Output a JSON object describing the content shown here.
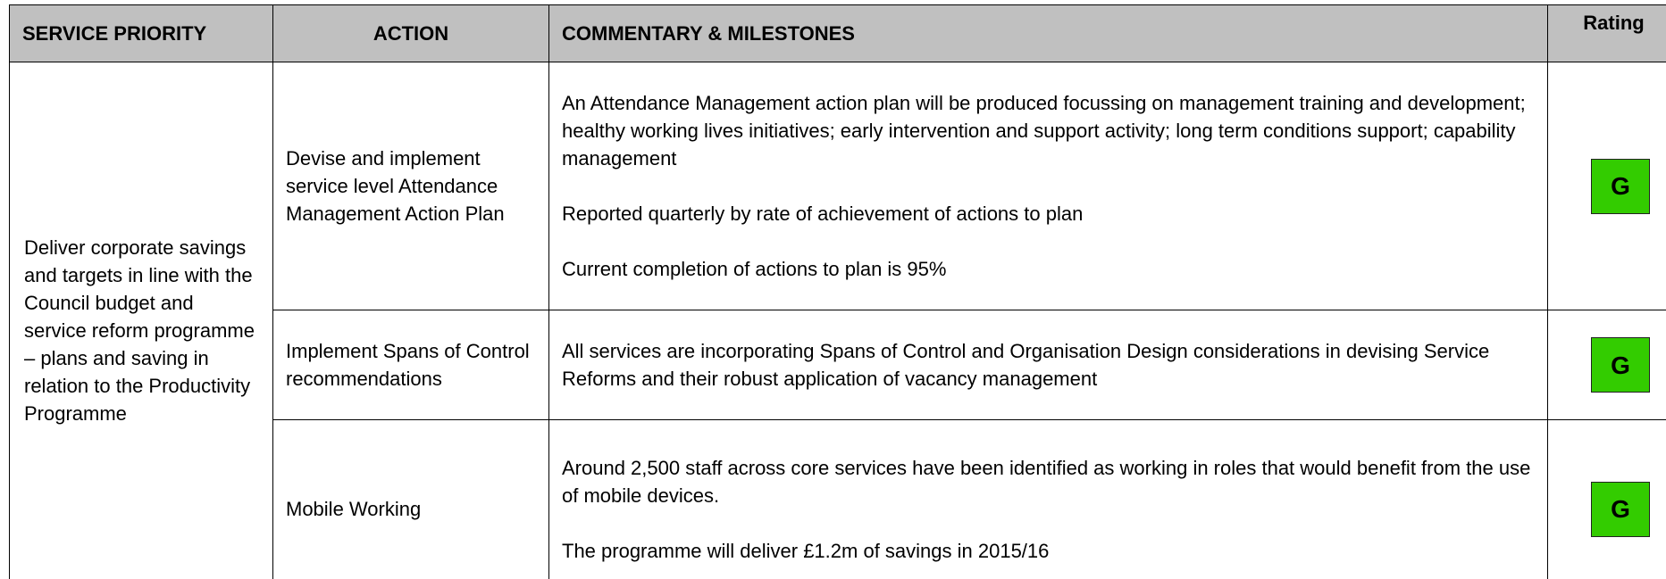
{
  "table": {
    "header": [
      "SERVICE PRIORITY",
      "ACTION",
      "COMMENTARY & MILESTONES",
      "Rating"
    ],
    "service_priority": "Deliver corporate savings and targets in line with the Council budget and service reform programme – plans and saving in relation to the Productivity Programme",
    "rows": [
      {
        "action": "Devise and implement service level Attendance Management Action Plan",
        "commentary": [
          "An Attendance Management action plan will be produced focussing on management training and development; healthy working lives initiatives; early intervention and support activity; long term conditions support; capability management",
          "Reported quarterly by rate of achievement of actions to plan",
          "Current completion of actions to plan  is 95%"
        ],
        "rating": "G"
      },
      {
        "action": "Implement Spans of Control recommendations",
        "commentary": [
          "All services are incorporating Spans of Control and Organisation Design considerations in devising Service Reforms and their robust application of vacancy management"
        ],
        "rating": "G"
      },
      {
        "action": "Mobile Working",
        "commentary": [
          "Around 2,500 staff across core services have been identified as working in roles that would benefit from the use of mobile devices.",
          "The programme will deliver £1.2m of savings in 2015/16"
        ],
        "rating": "G"
      }
    ]
  }
}
